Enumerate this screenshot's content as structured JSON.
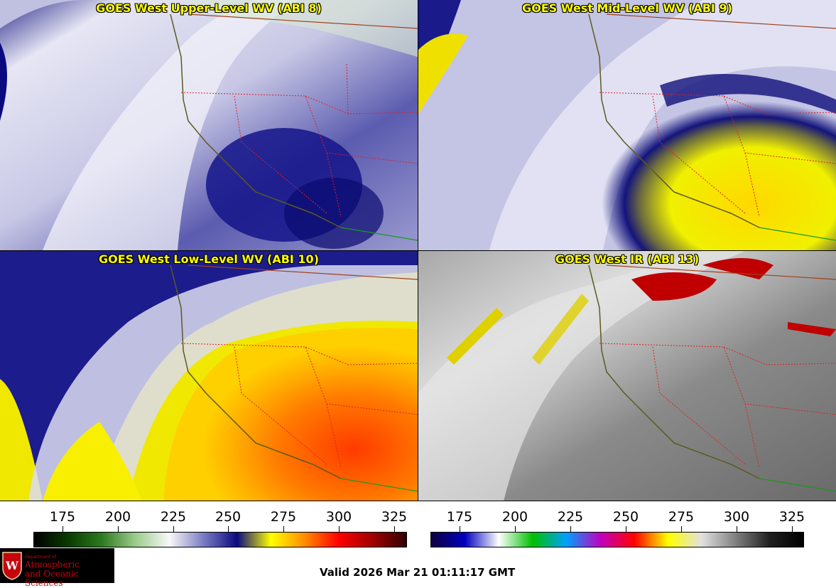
{
  "panels": [
    {
      "title": "GOES West Upper-Level WV (ABI 8)",
      "style": "upper"
    },
    {
      "title": "GOES West Mid-Level WV (ABI 9)",
      "style": "mid"
    },
    {
      "title": "GOES West Low-Level WV (ABI 10)",
      "style": "low"
    },
    {
      "title": "GOES West IR (ABI 13)",
      "style": "ir"
    }
  ],
  "colorbars": {
    "wv": {
      "ticks": [
        "175",
        "200",
        "225",
        "250",
        "275",
        "300",
        "325"
      ],
      "colors": [
        "#000000",
        "#0a3a00",
        "#2c7a20",
        "#9ccc8c",
        "#f8f8f8",
        "#7c7cc4",
        "#0a0a80",
        "#ffff00",
        "#ff8c00",
        "#ff0000",
        "#a00000",
        "#300000"
      ]
    },
    "ir": {
      "ticks": [
        "175",
        "200",
        "225",
        "250",
        "275",
        "300",
        "325"
      ],
      "colors": [
        "#100040",
        "#0000c0",
        "#ffffff",
        "#00c000",
        "#00a0ff",
        "#c000c0",
        "#ff0000",
        "#ffff00",
        "#e0e0e0",
        "#808080",
        "#202020",
        "#000000"
      ]
    }
  },
  "logo": {
    "department": "Department of",
    "line1": "Atmospheric",
    "line2": "and Oceanic Sciences"
  },
  "valid_time": "Valid 2026 Mar 21 01:11:17 GMT"
}
